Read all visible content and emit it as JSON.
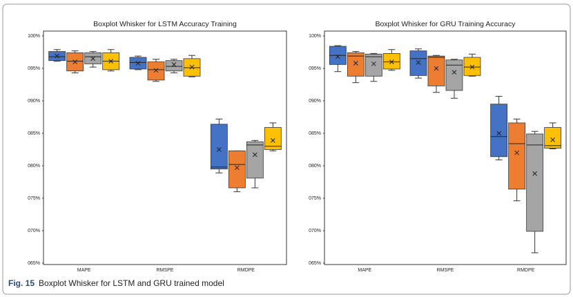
{
  "chart_data": [
    {
      "type": "box",
      "title": "Boxplot Whisker for LSTM Accuracy Training",
      "categories": [
        "MAPE",
        "RMSPE",
        "RMDPE"
      ],
      "ylim": [
        65,
        100
      ],
      "yticks": [
        {
          "value": 100,
          "label": "100%"
        },
        {
          "value": 95,
          "label": "095%"
        },
        {
          "value": 90,
          "label": "090%"
        },
        {
          "value": 85,
          "label": "085%"
        },
        {
          "value": 80,
          "label": "080%"
        },
        {
          "value": 75,
          "label": "075%"
        },
        {
          "value": 70,
          "label": "070%"
        },
        {
          "value": 65,
          "label": "065%"
        }
      ],
      "series": [
        {
          "color": "#4472c4",
          "values": [
            {
              "min": 96.1,
              "q1": 96.2,
              "median": 96.8,
              "q3": 97.6,
              "max": 97.9,
              "mean": 96.9
            },
            {
              "min": 94.8,
              "q1": 94.9,
              "median": 95.9,
              "q3": 96.7,
              "max": 96.9,
              "mean": 95.8
            },
            {
              "min": 78.9,
              "q1": 79.5,
              "median": 79.8,
              "q3": 86.4,
              "max": 87.2,
              "mean": 82.5
            }
          ]
        },
        {
          "color": "#ed7d31",
          "values": [
            {
              "min": 94.3,
              "q1": 94.6,
              "median": 96.1,
              "q3": 97.4,
              "max": 97.7,
              "mean": 96.0
            },
            {
              "min": 93.0,
              "q1": 93.2,
              "median": 94.8,
              "q3": 96.0,
              "max": 96.4,
              "mean": 94.7
            },
            {
              "min": 76.0,
              "q1": 76.6,
              "median": 80.2,
              "q3": 82.3,
              "max": 82.3,
              "mean": 79.7
            }
          ]
        },
        {
          "color": "#a5a5a5",
          "values": [
            {
              "min": 95.2,
              "q1": 95.7,
              "median": 96.8,
              "q3": 97.4,
              "max": 97.6,
              "mean": 96.5
            },
            {
              "min": 94.3,
              "q1": 94.6,
              "median": 95.3,
              "q3": 96.2,
              "max": 96.4,
              "mean": 95.6
            },
            {
              "min": 76.6,
              "q1": 78.1,
              "median": 83.2,
              "q3": 83.7,
              "max": 83.9,
              "mean": 81.7
            }
          ]
        },
        {
          "color": "#ffc000",
          "values": [
            {
              "min": 94.6,
              "q1": 94.8,
              "median": 96.1,
              "q3": 97.4,
              "max": 97.9,
              "mean": 96.1
            },
            {
              "min": 93.7,
              "q1": 93.8,
              "median": 95.1,
              "q3": 96.5,
              "max": 97.0,
              "mean": 95.2
            },
            {
              "min": 82.3,
              "q1": 82.5,
              "median": 83.0,
              "q3": 85.9,
              "max": 86.6,
              "mean": 83.9
            }
          ]
        }
      ]
    },
    {
      "type": "box",
      "title": "Boxplot Whisker for GRU Training Accuracy",
      "categories": [
        "MAPE",
        "RMSPE",
        "RMDPE"
      ],
      "ylim": [
        65,
        100
      ],
      "yticks": [
        {
          "value": 100,
          "label": "100%"
        },
        {
          "value": 95,
          "label": "095%"
        },
        {
          "value": 90,
          "label": "090%"
        },
        {
          "value": 85,
          "label": "085%"
        },
        {
          "value": 80,
          "label": "080%"
        },
        {
          "value": 75,
          "label": "075%"
        },
        {
          "value": 70,
          "label": "070%"
        },
        {
          "value": 65,
          "label": "065%"
        }
      ],
      "series": [
        {
          "color": "#4472c4",
          "values": [
            {
              "min": 94.5,
              "q1": 95.6,
              "median": 97.0,
              "q3": 98.4,
              "max": 98.5,
              "mean": 96.8
            },
            {
              "min": 93.5,
              "q1": 93.9,
              "median": 96.5,
              "q3": 97.7,
              "max": 98.0,
              "mean": 95.9
            },
            {
              "min": 80.9,
              "q1": 81.4,
              "median": 84.5,
              "q3": 89.5,
              "max": 90.7,
              "mean": 85.0
            }
          ]
        },
        {
          "color": "#ed7d31",
          "values": [
            {
              "min": 92.8,
              "q1": 93.8,
              "median": 96.9,
              "q3": 97.4,
              "max": 97.6,
              "mean": 95.8
            },
            {
              "min": 91.3,
              "q1": 92.3,
              "median": 96.7,
              "q3": 96.9,
              "max": 97.0,
              "mean": 95.0
            },
            {
              "min": 74.6,
              "q1": 76.4,
              "median": 83.4,
              "q3": 86.6,
              "max": 87.2,
              "mean": 82.0
            }
          ]
        },
        {
          "color": "#a5a5a5",
          "values": [
            {
              "min": 93.0,
              "q1": 93.8,
              "median": 96.8,
              "q3": 97.2,
              "max": 97.3,
              "mean": 95.7
            },
            {
              "min": 90.4,
              "q1": 91.6,
              "median": 95.5,
              "q3": 96.3,
              "max": 96.4,
              "mean": 94.4
            },
            {
              "min": 66.6,
              "q1": 69.9,
              "median": 83.2,
              "q3": 84.9,
              "max": 85.3,
              "mean": 78.8
            }
          ]
        },
        {
          "color": "#ffc000",
          "values": [
            {
              "min": 94.7,
              "q1": 94.9,
              "median": 96.0,
              "q3": 97.3,
              "max": 97.9,
              "mean": 96.0
            },
            {
              "min": 93.8,
              "q1": 93.9,
              "median": 95.2,
              "q3": 96.7,
              "max": 97.2,
              "mean": 95.2
            },
            {
              "min": 82.6,
              "q1": 82.7,
              "median": 83.1,
              "q3": 85.9,
              "max": 86.6,
              "mean": 84.0
            }
          ]
        }
      ]
    }
  ],
  "caption": {
    "label": "Fig. 15",
    "text": "Boxplot Whisker for LSTM and GRU trained model"
  }
}
